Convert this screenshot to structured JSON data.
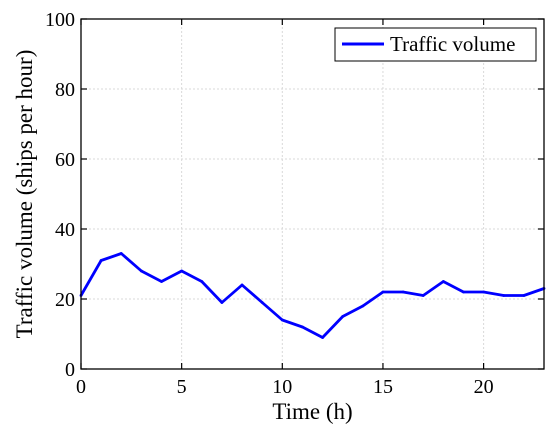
{
  "chart_data": {
    "type": "line",
    "xlabel": "Time (h)",
    "ylabel": "Traffic volume (ships per hour)",
    "xlim": [
      0,
      23
    ],
    "ylim": [
      0,
      100
    ],
    "xticks": [
      0,
      5,
      10,
      15,
      20
    ],
    "yticks": [
      0,
      20,
      40,
      60,
      80,
      100
    ],
    "grid": true,
    "legend_position": "top-right",
    "series": [
      {
        "name": "Traffic volume",
        "color": "#0000ff",
        "x": [
          0,
          1,
          2,
          3,
          4,
          5,
          6,
          7,
          8,
          9,
          10,
          11,
          12,
          13,
          14,
          15,
          16,
          17,
          18,
          19,
          20,
          21,
          22,
          23
        ],
        "y": [
          21,
          31,
          33,
          28,
          25,
          28,
          25,
          19,
          24,
          19,
          14,
          12,
          9,
          15,
          18,
          22,
          22,
          21,
          25,
          22,
          22,
          21,
          21,
          23
        ]
      }
    ]
  }
}
